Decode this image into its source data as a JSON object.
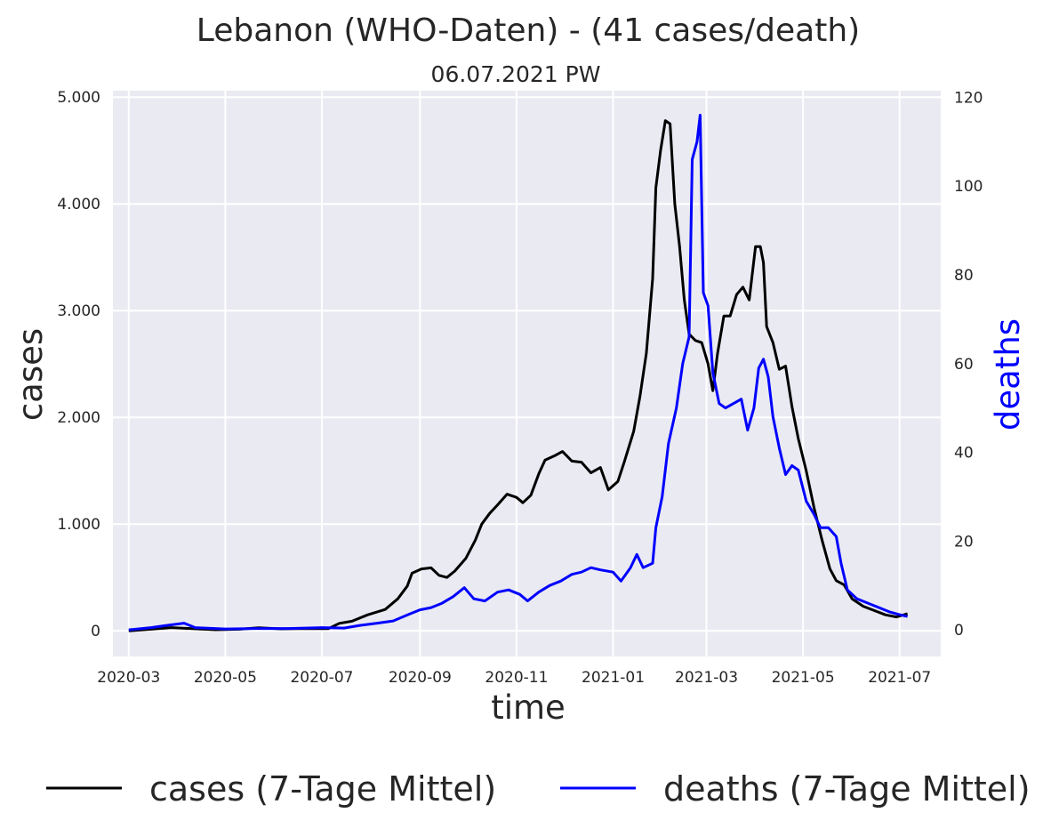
{
  "chart_data": {
    "type": "line",
    "title": "Lebanon (WHO-Daten) - (41 cases/death)",
    "subtitle": "06.07.2021 PW",
    "xlabel": "time",
    "ylabel": "cases",
    "y2label": "deaths",
    "x_ticks": [
      "2020-03",
      "2020-05",
      "2020-07",
      "2020-09",
      "2020-11",
      "2021-01",
      "2021-03",
      "2021-05",
      "2021-07"
    ],
    "y_ticks": [
      "0",
      "1.000",
      "2.000",
      "3.000",
      "4.000",
      "5.000"
    ],
    "y2_ticks": [
      "0",
      "20",
      "40",
      "60",
      "80",
      "100",
      "120"
    ],
    "xlim": [
      "2020-02-20",
      "2021-07-27"
    ],
    "ylim": [
      -240,
      5060
    ],
    "y2lim": [
      -6,
      121.5
    ],
    "grid": true,
    "legend_position": "bottom",
    "colors": {
      "cases": "#000000",
      "deaths": "#0000ff",
      "plot_bg": "#eaeaf2",
      "grid": "#ffffff"
    },
    "series": [
      {
        "name": "cases (7-Tage Mittel)",
        "axis": "left",
        "color": "#000000",
        "points": [
          [
            "2020-03-01",
            0
          ],
          [
            "2020-03-15",
            15
          ],
          [
            "2020-03-28",
            30
          ],
          [
            "2020-04-10",
            20
          ],
          [
            "2020-04-25",
            10
          ],
          [
            "2020-05-10",
            15
          ],
          [
            "2020-05-22",
            28
          ],
          [
            "2020-06-05",
            18
          ],
          [
            "2020-06-20",
            22
          ],
          [
            "2020-07-05",
            20
          ],
          [
            "2020-07-12",
            70
          ],
          [
            "2020-07-20",
            90
          ],
          [
            "2020-07-30",
            150
          ],
          [
            "2020-08-10",
            200
          ],
          [
            "2020-08-18",
            300
          ],
          [
            "2020-08-24",
            420
          ],
          [
            "2020-08-27",
            540
          ],
          [
            "2020-09-02",
            580
          ],
          [
            "2020-09-08",
            590
          ],
          [
            "2020-09-13",
            520
          ],
          [
            "2020-09-18",
            500
          ],
          [
            "2020-09-23",
            560
          ],
          [
            "2020-09-30",
            680
          ],
          [
            "2020-10-06",
            850
          ],
          [
            "2020-10-10",
            1000
          ],
          [
            "2020-10-15",
            1100
          ],
          [
            "2020-10-20",
            1180
          ],
          [
            "2020-10-26",
            1280
          ],
          [
            "2020-11-01",
            1250
          ],
          [
            "2020-11-05",
            1200
          ],
          [
            "2020-11-10",
            1270
          ],
          [
            "2020-11-15",
            1470
          ],
          [
            "2020-11-19",
            1600
          ],
          [
            "2020-11-25",
            1640
          ],
          [
            "2020-11-30",
            1680
          ],
          [
            "2020-12-06",
            1590
          ],
          [
            "2020-12-12",
            1580
          ],
          [
            "2020-12-18",
            1480
          ],
          [
            "2020-12-24",
            1530
          ],
          [
            "2020-12-29",
            1320
          ],
          [
            "2021-01-04",
            1400
          ],
          [
            "2021-01-08",
            1580
          ],
          [
            "2021-01-14",
            1870
          ],
          [
            "2021-01-18",
            2200
          ],
          [
            "2021-01-22",
            2600
          ],
          [
            "2021-01-26",
            3300
          ],
          [
            "2021-01-28",
            4150
          ],
          [
            "2021-01-31",
            4500
          ],
          [
            "2021-02-03",
            4780
          ],
          [
            "2021-02-06",
            4750
          ],
          [
            "2021-02-09",
            4000
          ],
          [
            "2021-02-12",
            3600
          ],
          [
            "2021-02-15",
            3100
          ],
          [
            "2021-02-18",
            2780
          ],
          [
            "2021-02-22",
            2720
          ],
          [
            "2021-02-26",
            2700
          ],
          [
            "2021-03-02",
            2500
          ],
          [
            "2021-03-05",
            2250
          ],
          [
            "2021-03-08",
            2600
          ],
          [
            "2021-03-12",
            2950
          ],
          [
            "2021-03-16",
            2950
          ],
          [
            "2021-03-20",
            3150
          ],
          [
            "2021-03-24",
            3220
          ],
          [
            "2021-03-28",
            3100
          ],
          [
            "2021-04-01",
            3600
          ],
          [
            "2021-04-04",
            3600
          ],
          [
            "2021-04-06",
            3450
          ],
          [
            "2021-04-08",
            2850
          ],
          [
            "2021-04-12",
            2700
          ],
          [
            "2021-04-16",
            2450
          ],
          [
            "2021-04-20",
            2480
          ],
          [
            "2021-04-24",
            2100
          ],
          [
            "2021-04-28",
            1800
          ],
          [
            "2021-05-03",
            1500
          ],
          [
            "2021-05-08",
            1150
          ],
          [
            "2021-05-13",
            850
          ],
          [
            "2021-05-18",
            580
          ],
          [
            "2021-05-22",
            470
          ],
          [
            "2021-05-27",
            430
          ],
          [
            "2021-06-01",
            300
          ],
          [
            "2021-06-08",
            230
          ],
          [
            "2021-06-15",
            190
          ],
          [
            "2021-06-22",
            150
          ],
          [
            "2021-06-29",
            130
          ],
          [
            "2021-07-06",
            160
          ]
        ]
      },
      {
        "name": "deaths (7-Tage Mittel)",
        "axis": "right",
        "color": "#0000ff",
        "points": [
          [
            "2020-03-01",
            0
          ],
          [
            "2020-03-15",
            0.5
          ],
          [
            "2020-03-25",
            1
          ],
          [
            "2020-04-05",
            1.5
          ],
          [
            "2020-04-12",
            0.5
          ],
          [
            "2020-05-01",
            0.2
          ],
          [
            "2020-05-20",
            0.3
          ],
          [
            "2020-06-10",
            0.3
          ],
          [
            "2020-07-01",
            0.5
          ],
          [
            "2020-07-15",
            0.4
          ],
          [
            "2020-07-25",
            1
          ],
          [
            "2020-08-05",
            1.5
          ],
          [
            "2020-08-15",
            2
          ],
          [
            "2020-08-25",
            3.5
          ],
          [
            "2020-09-01",
            4.5
          ],
          [
            "2020-09-08",
            5
          ],
          [
            "2020-09-15",
            6
          ],
          [
            "2020-09-22",
            7.5
          ],
          [
            "2020-09-29",
            9.5
          ],
          [
            "2020-10-05",
            7
          ],
          [
            "2020-10-12",
            6.5
          ],
          [
            "2020-10-20",
            8.5
          ],
          [
            "2020-10-27",
            9
          ],
          [
            "2020-11-03",
            8
          ],
          [
            "2020-11-08",
            6.5
          ],
          [
            "2020-11-15",
            8.5
          ],
          [
            "2020-11-22",
            10
          ],
          [
            "2020-11-29",
            11
          ],
          [
            "2020-12-06",
            12.5
          ],
          [
            "2020-12-12",
            13
          ],
          [
            "2020-12-18",
            14
          ],
          [
            "2020-12-24",
            13.5
          ],
          [
            "2021-01-01",
            13
          ],
          [
            "2021-01-06",
            11
          ],
          [
            "2021-01-12",
            14
          ],
          [
            "2021-01-16",
            17
          ],
          [
            "2021-01-20",
            14
          ],
          [
            "2021-01-26",
            15
          ],
          [
            "2021-01-28",
            23
          ],
          [
            "2021-02-01",
            30
          ],
          [
            "2021-02-05",
            42
          ],
          [
            "2021-02-10",
            50
          ],
          [
            "2021-02-14",
            60
          ],
          [
            "2021-02-18",
            66
          ],
          [
            "2021-02-20",
            106
          ],
          [
            "2021-02-23",
            110
          ],
          [
            "2021-02-25",
            116
          ],
          [
            "2021-02-27",
            76
          ],
          [
            "2021-03-02",
            73
          ],
          [
            "2021-03-05",
            58
          ],
          [
            "2021-03-09",
            51
          ],
          [
            "2021-03-13",
            50
          ],
          [
            "2021-03-18",
            51
          ],
          [
            "2021-03-23",
            52
          ],
          [
            "2021-03-27",
            45
          ],
          [
            "2021-03-31",
            50
          ],
          [
            "2021-04-03",
            59
          ],
          [
            "2021-04-06",
            61
          ],
          [
            "2021-04-09",
            57
          ],
          [
            "2021-04-12",
            48
          ],
          [
            "2021-04-16",
            41
          ],
          [
            "2021-04-20",
            35
          ],
          [
            "2021-04-24",
            37
          ],
          [
            "2021-04-28",
            36
          ],
          [
            "2021-05-03",
            29
          ],
          [
            "2021-05-08",
            26
          ],
          [
            "2021-05-12",
            23
          ],
          [
            "2021-05-17",
            23
          ],
          [
            "2021-05-22",
            21
          ],
          [
            "2021-05-25",
            15
          ],
          [
            "2021-05-29",
            9
          ],
          [
            "2021-06-04",
            7
          ],
          [
            "2021-06-11",
            6
          ],
          [
            "2021-06-18",
            5
          ],
          [
            "2021-06-25",
            4
          ],
          [
            "2021-06-30",
            3.5
          ],
          [
            "2021-07-06",
            3
          ]
        ]
      }
    ]
  }
}
